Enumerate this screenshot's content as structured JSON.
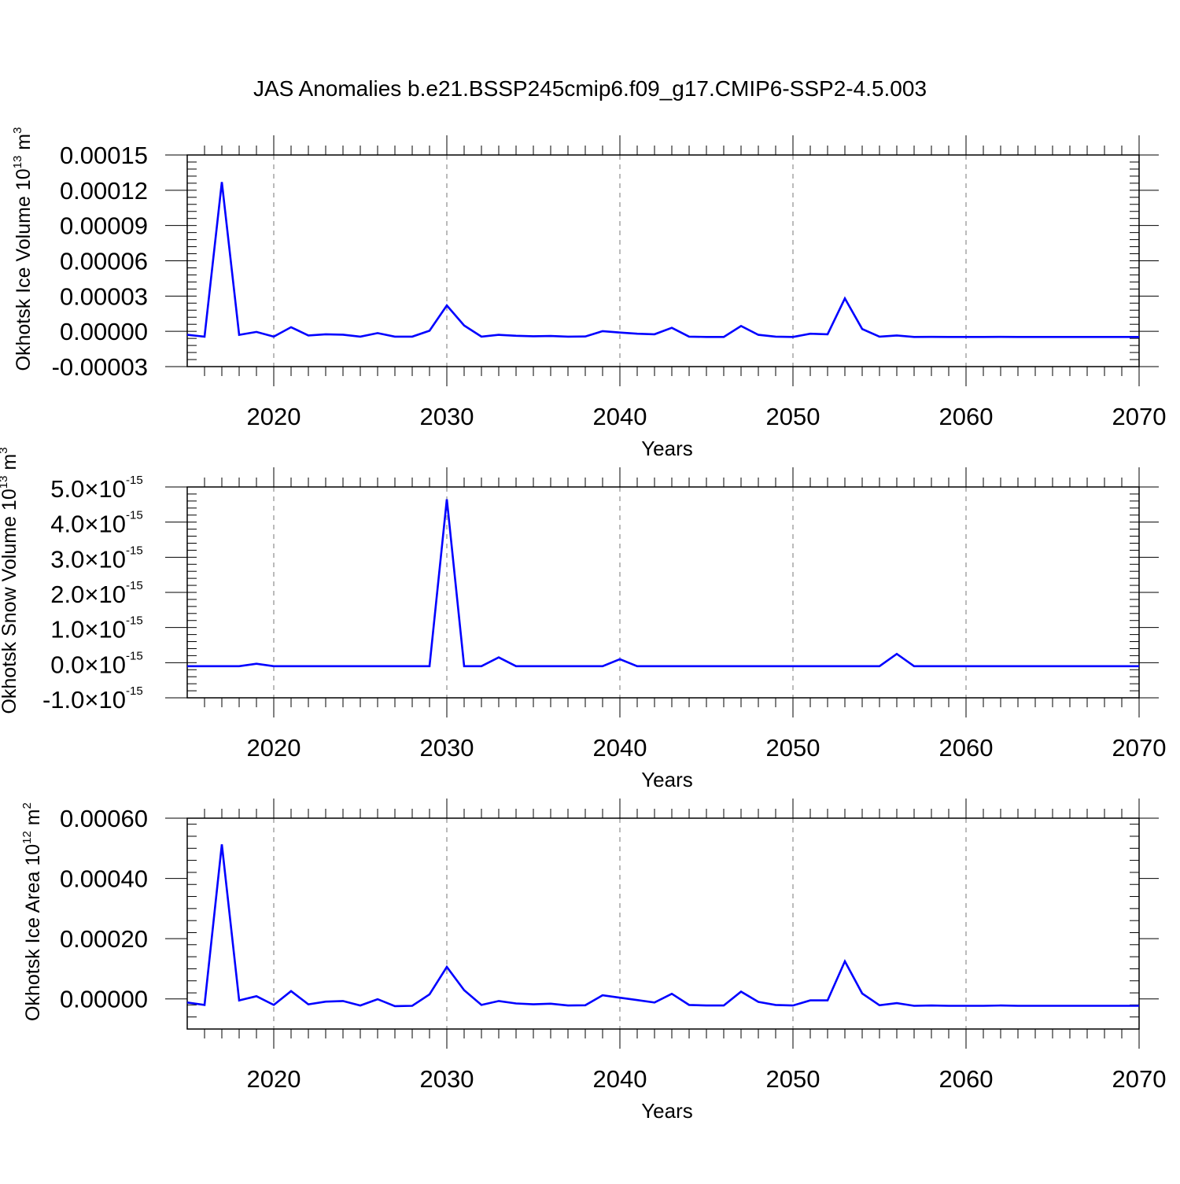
{
  "title": "JAS Anomalies b.e21.BSSP245cmip6.f09_g17.CMIP6-SSP2-4.5.003",
  "colors": {
    "line": "#0000ff",
    "axis": "#000000",
    "grid": "#777777"
  },
  "chart_data": [
    {
      "type": "line",
      "xlabel": "Years",
      "ylabel": {
        "text": "Okhotsk Ice Volume 10",
        "exp": "13",
        "unit": "m",
        "unit_exp": "3"
      },
      "xlim": [
        2015,
        2070
      ],
      "ylim": [
        -3e-05,
        0.00015
      ],
      "xticks": [
        "2020",
        "2030",
        "2040",
        "2050",
        "2060",
        "2070"
      ],
      "yticks": [
        {
          "value": 0.00015,
          "label": "0.00015"
        },
        {
          "value": 0.00012,
          "label": "0.00012"
        },
        {
          "value": 9e-05,
          "label": "0.00009"
        },
        {
          "value": 6e-05,
          "label": "0.00006"
        },
        {
          "value": 3e-05,
          "label": "0.00003"
        },
        {
          "value": 0.0,
          "label": "0.00000"
        },
        {
          "value": -3e-05,
          "label": "-0.00003"
        }
      ],
      "grid": "dashed vertical at major x ticks",
      "series": [
        {
          "x": [
            2015,
            2016,
            2017,
            2018,
            2019,
            2020,
            2021,
            2022,
            2023,
            2024,
            2025,
            2026,
            2027,
            2028,
            2029,
            2030,
            2031,
            2032,
            2033,
            2034,
            2035,
            2036,
            2037,
            2038,
            2039,
            2040,
            2041,
            2042,
            2043,
            2044,
            2045,
            2046,
            2047,
            2048,
            2049,
            2050,
            2051,
            2052,
            2053,
            2054,
            2055,
            2056,
            2057,
            2058,
            2059,
            2060,
            2061,
            2062,
            2063,
            2064,
            2065,
            2066,
            2067,
            2068,
            2069,
            2070
          ],
          "y": [
            -3e-06,
            -4.5e-06,
            0.000127,
            -3e-06,
            -5e-07,
            -4.5e-06,
            3.5e-06,
            -3.5e-06,
            -2.5e-06,
            -2.8e-06,
            -4.5e-06,
            -1.5e-06,
            -4.5e-06,
            -4.5e-06,
            5e-07,
            2.2e-05,
            5e-06,
            -4.5e-06,
            -3e-06,
            -3.8e-06,
            -4.2e-06,
            -4e-06,
            -4.5e-06,
            -4.4e-06,
            2e-07,
            -1e-06,
            -2e-06,
            -2.5e-06,
            3e-06,
            -4.5e-06,
            -4.8e-06,
            -4.8e-06,
            4.5e-06,
            -3e-06,
            -4.5e-06,
            -4.8e-06,
            -2e-06,
            -2.5e-06,
            2.8e-05,
            2e-06,
            -4.5e-06,
            -3.5e-06,
            -4.8e-06,
            -4.7e-06,
            -4.8e-06,
            -4.8e-06,
            -4.8e-06,
            -4.7e-06,
            -4.8e-06,
            -4.8e-06,
            -4.8e-06,
            -4.8e-06,
            -4.8e-06,
            -4.8e-06,
            -4.8e-06,
            -4.8e-06
          ]
        }
      ]
    },
    {
      "type": "line",
      "xlabel": "Years",
      "ylabel": {
        "text": "Okhotsk Snow Volume 10",
        "exp": "13",
        "unit": "m",
        "unit_exp": "3"
      },
      "xlim": [
        2015,
        2070
      ],
      "ylim": [
        -1e-15,
        5e-15
      ],
      "xticks": [
        "2020",
        "2030",
        "2040",
        "2050",
        "2060",
        "2070"
      ],
      "yticks": [
        {
          "value": 5e-15,
          "mant": "5.0",
          "times": "×10",
          "exp": "-15"
        },
        {
          "value": 4e-15,
          "mant": "4.0",
          "times": "×10",
          "exp": "-15"
        },
        {
          "value": 3e-15,
          "mant": "3.0",
          "times": "×10",
          "exp": "-15"
        },
        {
          "value": 2e-15,
          "mant": "2.0",
          "times": "×10",
          "exp": "-15"
        },
        {
          "value": 1e-15,
          "mant": "1.0",
          "times": "×10",
          "exp": "-15"
        },
        {
          "value": 0.0,
          "mant": "0.0",
          "times": "×10",
          "exp": "-15"
        },
        {
          "value": -1e-15,
          "mant": "-1.0",
          "times": "×10",
          "exp": "-15"
        }
      ],
      "grid": "dashed vertical at major x ticks",
      "series": [
        {
          "x": [
            2015,
            2016,
            2017,
            2018,
            2019,
            2020,
            2021,
            2022,
            2023,
            2024,
            2025,
            2026,
            2027,
            2028,
            2029,
            2030,
            2031,
            2032,
            2033,
            2034,
            2035,
            2036,
            2037,
            2038,
            2039,
            2040,
            2041,
            2042,
            2043,
            2044,
            2045,
            2046,
            2047,
            2048,
            2049,
            2050,
            2051,
            2052,
            2053,
            2054,
            2055,
            2056,
            2057,
            2058,
            2059,
            2060,
            2061,
            2062,
            2063,
            2064,
            2065,
            2066,
            2067,
            2068,
            2069,
            2070
          ],
          "y": [
            -1e-16,
            -1e-16,
            -1e-16,
            -1e-16,
            -3e-17,
            -1e-16,
            -1e-16,
            -1e-16,
            -1e-16,
            -1e-16,
            -1e-16,
            -1e-16,
            -1e-16,
            -1e-16,
            -1e-16,
            4.65e-15,
            -1e-16,
            -1e-16,
            1.5e-16,
            -1e-16,
            -1e-16,
            -1e-16,
            -1e-16,
            -1e-16,
            -1e-16,
            1e-16,
            -1e-16,
            -1e-16,
            -1e-16,
            -1e-16,
            -1e-16,
            -1e-16,
            -1e-16,
            -1e-16,
            -1e-16,
            -1e-16,
            -1e-16,
            -1e-16,
            -1e-16,
            -1e-16,
            -1e-16,
            2.5e-16,
            -1e-16,
            -1e-16,
            -1e-16,
            -1e-16,
            -1e-16,
            -1e-16,
            -1e-16,
            -1e-16,
            -1e-16,
            -1e-16,
            -1e-16,
            -1e-16,
            -1e-16,
            -1e-16
          ]
        }
      ]
    },
    {
      "type": "line",
      "xlabel": "Years",
      "ylabel": {
        "text": "Okhotsk Ice Area 10",
        "exp": "12",
        "unit": "m",
        "unit_exp": "2"
      },
      "xlim": [
        2015,
        2070
      ],
      "ylim": [
        -0.0001,
        0.0006
      ],
      "xticks": [
        "2020",
        "2030",
        "2040",
        "2050",
        "2060",
        "2070"
      ],
      "yticks": [
        {
          "value": 0.0006,
          "label": "0.00060"
        },
        {
          "value": 0.0004,
          "label": "0.00040"
        },
        {
          "value": 0.0002,
          "label": "0.00020"
        },
        {
          "value": 0.0,
          "label": "0.00000"
        }
      ],
      "grid": "dashed vertical at major x ticks",
      "series": [
        {
          "x": [
            2015,
            2016,
            2017,
            2018,
            2019,
            2020,
            2021,
            2022,
            2023,
            2024,
            2025,
            2026,
            2027,
            2028,
            2029,
            2030,
            2031,
            2032,
            2033,
            2034,
            2035,
            2036,
            2037,
            2038,
            2039,
            2040,
            2041,
            2042,
            2043,
            2044,
            2045,
            2046,
            2047,
            2048,
            2049,
            2050,
            2051,
            2052,
            2053,
            2054,
            2055,
            2056,
            2057,
            2058,
            2059,
            2060,
            2061,
            2062,
            2063,
            2064,
            2065,
            2066,
            2067,
            2068,
            2069,
            2070
          ],
          "y": [
            -1.2e-05,
            -2e-05,
            0.000513,
            -5e-06,
            9e-06,
            -2e-05,
            2.6e-05,
            -1.8e-05,
            -9e-06,
            -7e-06,
            -2.2e-05,
            -1e-06,
            -2.4e-05,
            -2.3e-05,
            1.5e-05,
            0.000106,
            2.9e-05,
            -2e-05,
            -7e-06,
            -1.5e-05,
            -1.8e-05,
            -1.6e-05,
            -2.2e-05,
            -2.1e-05,
            1.2e-05,
            4e-06,
            -4e-06,
            -1.2e-05,
            1.7e-05,
            -2e-05,
            -2.2e-05,
            -2.2e-05,
            2.4e-05,
            -1e-05,
            -2e-05,
            -2.2e-05,
            -5e-06,
            -5e-06,
            0.000125,
            1.8e-05,
            -2.1e-05,
            -1.4e-05,
            -2.3e-05,
            -2.2e-05,
            -2.3e-05,
            -2.3e-05,
            -2.3e-05,
            -2.2e-05,
            -2.3e-05,
            -2.3e-05,
            -2.3e-05,
            -2.3e-05,
            -2.3e-05,
            -2.3e-05,
            -2.3e-05,
            -2.3e-05
          ]
        }
      ]
    }
  ]
}
